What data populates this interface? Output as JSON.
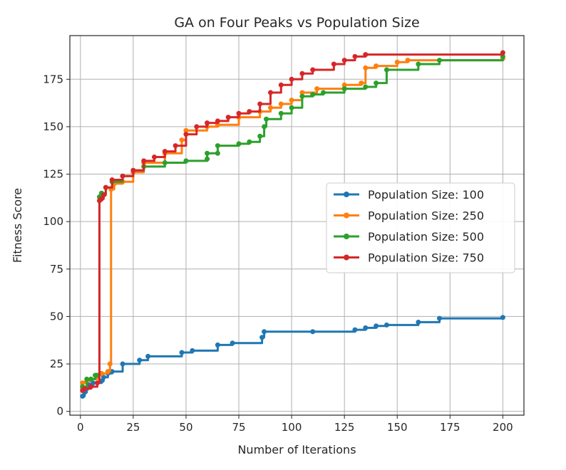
{
  "chart_data": {
    "type": "line",
    "title": "GA on Four Peaks vs Population Size",
    "xlabel": "Number of Iterations",
    "ylabel": "Fitness Score",
    "xlim": [
      -5,
      210
    ],
    "ylim": [
      -2,
      198
    ],
    "xticks": [
      0,
      25,
      50,
      75,
      100,
      125,
      150,
      175,
      200
    ],
    "yticks": [
      0,
      25,
      50,
      75,
      100,
      125,
      150,
      175
    ],
    "grid": true,
    "legend_position": "center-right",
    "series": [
      {
        "name": "Population Size: 100",
        "color": "#1f77b4",
        "points": [
          [
            1,
            8
          ],
          [
            2,
            10
          ],
          [
            3,
            12
          ],
          [
            4,
            14
          ],
          [
            6,
            15
          ],
          [
            10,
            16
          ],
          [
            11,
            18
          ],
          [
            13,
            20
          ],
          [
            15,
            21
          ],
          [
            20,
            25
          ],
          [
            28,
            27
          ],
          [
            32,
            29
          ],
          [
            48,
            31
          ],
          [
            53,
            32
          ],
          [
            65,
            35
          ],
          [
            72,
            36
          ],
          [
            86,
            39
          ],
          [
            87,
            42
          ],
          [
            110,
            42
          ],
          [
            130,
            43
          ],
          [
            135,
            44
          ],
          [
            140,
            45
          ],
          [
            145,
            45.5
          ],
          [
            160,
            47
          ],
          [
            170,
            49
          ],
          [
            200,
            49.5
          ]
        ]
      },
      {
        "name": "Population Size: 250",
        "color": "#ff7f0e",
        "points": [
          [
            1,
            15
          ],
          [
            3,
            16
          ],
          [
            5,
            17
          ],
          [
            8,
            19
          ],
          [
            10,
            20
          ],
          [
            13,
            21
          ],
          [
            14,
            25
          ],
          [
            14.5,
            117
          ],
          [
            16,
            120
          ],
          [
            20,
            121
          ],
          [
            25,
            126
          ],
          [
            30,
            131
          ],
          [
            40,
            136
          ],
          [
            48,
            143
          ],
          [
            50,
            148
          ],
          [
            60,
            150
          ],
          [
            65,
            151
          ],
          [
            75,
            155
          ],
          [
            85,
            158
          ],
          [
            90,
            160
          ],
          [
            95,
            162
          ],
          [
            100,
            164
          ],
          [
            105,
            168
          ],
          [
            112,
            170
          ],
          [
            125,
            172
          ],
          [
            133,
            173
          ],
          [
            135,
            181
          ],
          [
            140,
            182
          ],
          [
            150,
            184
          ],
          [
            155,
            185
          ],
          [
            200,
            186
          ]
        ]
      },
      {
        "name": "Population Size: 500",
        "color": "#2ca02c",
        "points": [
          [
            1,
            13
          ],
          [
            3,
            17
          ],
          [
            5,
            17
          ],
          [
            7,
            19
          ],
          [
            8,
            19
          ],
          [
            9,
            113
          ],
          [
            10,
            115
          ],
          [
            12,
            118
          ],
          [
            15,
            121
          ],
          [
            20,
            124
          ],
          [
            25,
            127
          ],
          [
            30,
            129
          ],
          [
            40,
            131
          ],
          [
            50,
            132
          ],
          [
            60,
            133
          ],
          [
            60,
            136
          ],
          [
            65,
            136
          ],
          [
            65,
            140
          ],
          [
            75,
            141
          ],
          [
            80,
            142
          ],
          [
            85,
            145
          ],
          [
            87,
            150
          ],
          [
            88,
            154
          ],
          [
            95,
            157
          ],
          [
            100,
            160
          ],
          [
            105,
            166
          ],
          [
            110,
            167
          ],
          [
            115,
            168
          ],
          [
            125,
            170
          ],
          [
            135,
            171
          ],
          [
            140,
            173
          ],
          [
            145,
            180
          ],
          [
            160,
            183
          ],
          [
            170,
            185
          ],
          [
            200,
            187
          ]
        ]
      },
      {
        "name": "Population Size: 750",
        "color": "#d62728",
        "points": [
          [
            1,
            11
          ],
          [
            2,
            12
          ],
          [
            5,
            13
          ],
          [
            8,
            15
          ],
          [
            9,
            111
          ],
          [
            10,
            112
          ],
          [
            11,
            114
          ],
          [
            12,
            118
          ],
          [
            15,
            122
          ],
          [
            20,
            124
          ],
          [
            25,
            127
          ],
          [
            30,
            132
          ],
          [
            35,
            134
          ],
          [
            40,
            137
          ],
          [
            45,
            140
          ],
          [
            50,
            146
          ],
          [
            55,
            150
          ],
          [
            60,
            152
          ],
          [
            65,
            153
          ],
          [
            70,
            155
          ],
          [
            75,
            157
          ],
          [
            80,
            158
          ],
          [
            85,
            162
          ],
          [
            90,
            168
          ],
          [
            95,
            172
          ],
          [
            100,
            175
          ],
          [
            105,
            178
          ],
          [
            110,
            180
          ],
          [
            120,
            183
          ],
          [
            125,
            185
          ],
          [
            130,
            187
          ],
          [
            135,
            188
          ],
          [
            200,
            189
          ]
        ]
      }
    ]
  }
}
